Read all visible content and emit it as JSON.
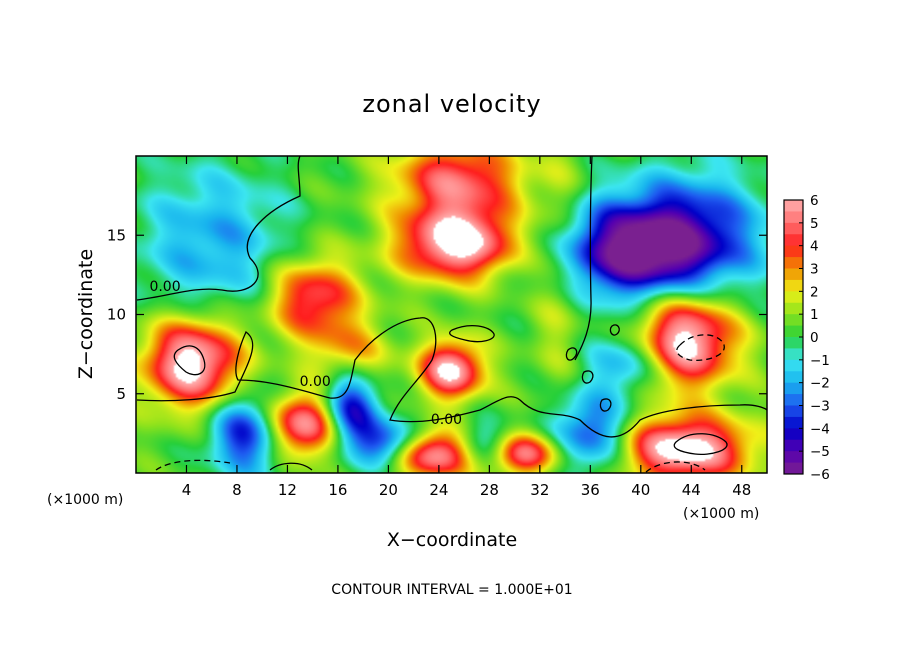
{
  "chart_data": {
    "type": "heatmap",
    "title": "zonal velocity",
    "xlabel": "X−coordinate",
    "ylabel": "Z−coordinate",
    "x_units": "(×1000 m)",
    "x_units_right": "(×1000 m)",
    "xlim": [
      0,
      50
    ],
    "ylim": [
      0,
      20
    ],
    "x_ticks": [
      4,
      8,
      12,
      16,
      20,
      24,
      28,
      32,
      36,
      40,
      44,
      48
    ],
    "y_ticks": [
      5,
      10,
      15
    ],
    "x_tick_labels": [
      "4",
      "8",
      "12",
      "16",
      "20",
      "24",
      "28",
      "32",
      "36",
      "40",
      "44",
      "48"
    ],
    "y_tick_labels": [
      "5",
      "10",
      "15"
    ],
    "colorbar": {
      "min": -6,
      "max": 6,
      "tick_values": [
        6,
        5,
        4,
        3,
        2,
        1,
        0,
        -1,
        -2,
        -3,
        -4,
        -5,
        -6
      ],
      "tick_labels": [
        "6",
        "5",
        "4",
        "3",
        "2",
        "1",
        "0",
        "−1",
        "−2",
        "−3",
        "−4",
        "−5",
        "−6"
      ]
    },
    "contour_labels": [
      {
        "text": "0.00",
        "x": 2.3,
        "z": 11.8
      },
      {
        "text": "0.00",
        "x": 14.2,
        "z": 5.8
      },
      {
        "text": "0.00",
        "x": 24.6,
        "z": 3.4
      }
    ],
    "features": [
      {
        "x": 25.5,
        "z": 14.5,
        "value": 6.5,
        "rx": 4.5,
        "rz": 2.2
      },
      {
        "x": 25.0,
        "z": 6.5,
        "value": 6.0,
        "rx": 2.5,
        "rz": 1.8
      },
      {
        "x": 4.5,
        "z": 7.0,
        "value": 6.5,
        "rx": 3.8,
        "rz": 2.8
      },
      {
        "x": 13.0,
        "z": 3.0,
        "value": 6.0,
        "rx": 3.2,
        "rz": 2.0
      },
      {
        "x": 43.5,
        "z": 8.5,
        "value": 6.5,
        "rx": 4.0,
        "rz": 3.0
      },
      {
        "x": 43.5,
        "z": 1.5,
        "value": 6.5,
        "rx": 5.0,
        "rz": 2.0
      },
      {
        "x": 24.0,
        "z": 1.2,
        "value": 6.0,
        "rx": 4.0,
        "rz": 1.5
      },
      {
        "x": 30.5,
        "z": 1.2,
        "value": 5.0,
        "rx": 3.0,
        "rz": 1.3
      },
      {
        "x": 14.0,
        "z": 11.0,
        "value": 4.5,
        "rx": 3.5,
        "rz": 2.5
      },
      {
        "x": 25.5,
        "z": 18.5,
        "value": 4.5,
        "rx": 5.0,
        "rz": 2.5
      },
      {
        "x": 39.0,
        "z": 14.0,
        "value": -5.5,
        "rx": 6.0,
        "rz": 3.0
      },
      {
        "x": 44.0,
        "z": 15.0,
        "value": -4.0,
        "rx": 6.0,
        "rz": 4.0
      },
      {
        "x": 9.0,
        "z": 2.5,
        "value": -5.0,
        "rx": 3.0,
        "rz": 2.5
      },
      {
        "x": 17.0,
        "z": 4.0,
        "value": -5.0,
        "rx": 2.2,
        "rz": 2.5
      },
      {
        "x": 20.0,
        "z": 1.8,
        "value": -4.5,
        "rx": 2.5,
        "rz": 1.5
      },
      {
        "x": 27.5,
        "z": 1.5,
        "value": -4.5,
        "rx": 2.5,
        "rz": 1.5
      },
      {
        "x": 36.0,
        "z": 2.5,
        "value": -4.0,
        "rx": 3.0,
        "rz": 2.5
      },
      {
        "x": 6.0,
        "z": 14.5,
        "value": -2.5,
        "rx": 6.0,
        "rz": 5.0
      },
      {
        "x": 39.0,
        "z": 7.0,
        "value": -3.0,
        "rx": 3.0,
        "rz": 2.0
      },
      {
        "x": 17.0,
        "z": 7.5,
        "value": 2.5,
        "rx": 3.0,
        "rz": 2.0
      },
      {
        "x": 33.5,
        "z": 13.0,
        "value": 1.5,
        "rx": 2.0,
        "rz": 7.0
      }
    ]
  },
  "footer_text": "CONTOUR INTERVAL = 1.000E+01",
  "colors": {
    "scale": [
      "#7a2090",
      "#5500b0",
      "#0000c8",
      "#1e5af0",
      "#18b4ee",
      "#3ce6f0",
      "#26d03a",
      "#8ce21c",
      "#f0f018",
      "#f08c00",
      "#ff1e1e",
      "#ff7070",
      "#ffb0b0"
    ],
    "background": "#ffffff"
  }
}
